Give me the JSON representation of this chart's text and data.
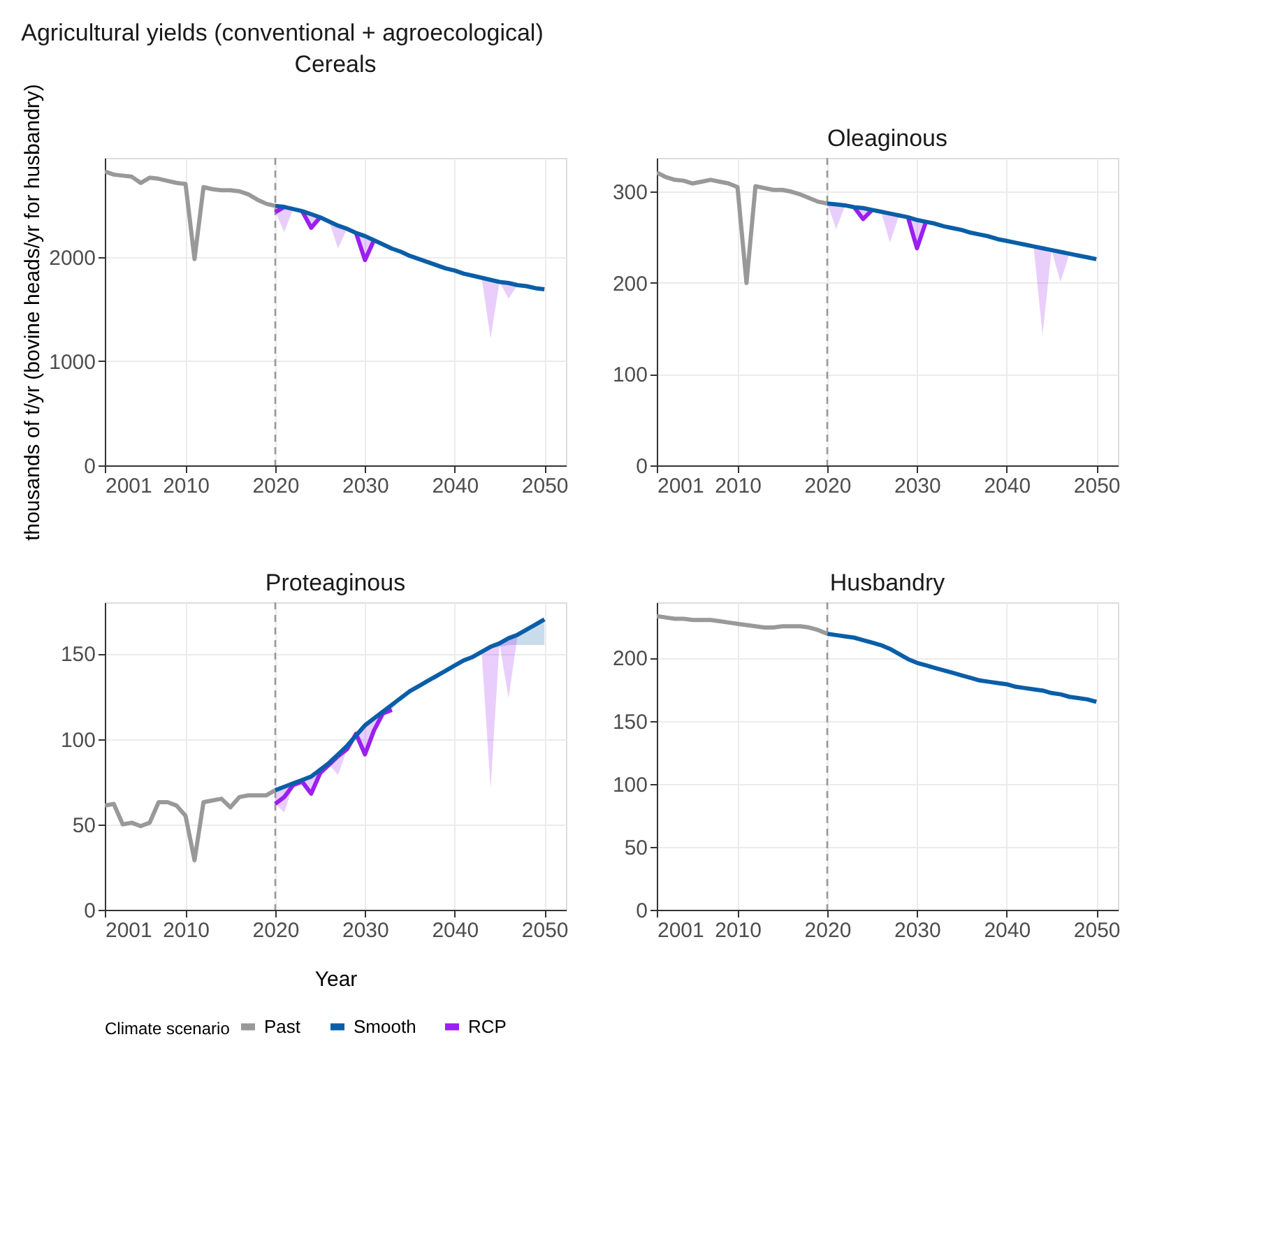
{
  "chart_data": [
    {
      "type": "line",
      "title": "Cereals",
      "annotations": [
        "Agricultural yields (conventional + agroecological)"
      ],
      "ylabel": "thousands of t/yr (bovine heads/yr for husbandry)",
      "legend_title": "Climate scenario",
      "legend": "bottom",
      "grid": true,
      "xlim": [
        2001,
        2052.4
      ],
      "xticks": [
        2001,
        2010,
        2020,
        2030,
        2040,
        2050
      ],
      "ylim": [
        0,
        2950
      ],
      "yticks": [
        0,
        1000,
        2000
      ],
      "ref_lines": [
        {
          "axis": "x",
          "value": 2020,
          "color": "#999999",
          "line_style": "dashed"
        }
      ],
      "series": [
        {
          "name": "Past",
          "color": "#999999",
          "x": [
            2001,
            2002,
            2003,
            2004,
            2005,
            2006,
            2007,
            2008,
            2009,
            2010,
            2011,
            2012,
            2013,
            2014,
            2015,
            2016,
            2017,
            2018,
            2019,
            2020
          ],
          "values": [
            2820,
            2790,
            2780,
            2770,
            2710,
            2760,
            2750,
            2730,
            2710,
            2700,
            1980,
            2670,
            2650,
            2640,
            2640,
            2630,
            2600,
            2550,
            2510,
            2490
          ]
        },
        {
          "name": "Smooth",
          "color": "#0a5ea8",
          "x": [
            2020,
            2021,
            2022,
            2023,
            2024,
            2025,
            2026,
            2027,
            2028,
            2029,
            2030,
            2031,
            2032,
            2033,
            2034,
            2035,
            2036,
            2037,
            2038,
            2039,
            2040,
            2041,
            2042,
            2043,
            2044,
            2045,
            2046,
            2047,
            2048,
            2049,
            2050
          ],
          "values": [
            2490,
            2480,
            2460,
            2440,
            2410,
            2380,
            2340,
            2300,
            2270,
            2230,
            2200,
            2160,
            2120,
            2080,
            2050,
            2010,
            1980,
            1950,
            1920,
            1890,
            1870,
            1840,
            1820,
            1800,
            1780,
            1760,
            1750,
            1730,
            1720,
            1700,
            1690
          ]
        },
        {
          "name": "RCP",
          "color": "#9b1ff0",
          "x": [
            2020,
            2021,
            2022,
            2023,
            2024,
            2025,
            2026,
            2027,
            2028,
            2029,
            2030,
            2031,
            2032,
            2033,
            2034,
            2035,
            2036,
            2037,
            2038,
            2039,
            2040,
            2041,
            2042,
            2043,
            2044,
            2045,
            2046,
            2047,
            2048,
            2049,
            2050
          ],
          "values": [
            2430,
            2480,
            null,
            2440,
            2280,
            2380,
            null,
            null,
            null,
            2230,
            1970,
            2160,
            null,
            null,
            null,
            null,
            null,
            null,
            null,
            null,
            null,
            null,
            null,
            null,
            null,
            null,
            null,
            null,
            null,
            null,
            null
          ],
          "lower": [
            2430,
            2240,
            2460,
            2440,
            2280,
            2380,
            2340,
            2080,
            2270,
            2230,
            1970,
            2160,
            2120,
            2080,
            2050,
            2010,
            1980,
            1950,
            1920,
            1890,
            1870,
            1840,
            1820,
            1800,
            1220,
            1760,
            1600,
            1730,
            1720,
            1700,
            1690
          ],
          "upper": [
            2490,
            2480,
            2460,
            2440,
            2410,
            2380,
            2340,
            2300,
            2270,
            2230,
            2200,
            2160,
            2120,
            2080,
            2050,
            2010,
            1980,
            1950,
            1920,
            1890,
            1870,
            1840,
            1820,
            1800,
            1780,
            1760,
            1750,
            1730,
            1720,
            1700,
            1690
          ]
        }
      ]
    },
    {
      "type": "line",
      "title": "Oleaginous",
      "grid": true,
      "xlim": [
        2001,
        2052.4
      ],
      "xticks": [
        2001,
        2010,
        2020,
        2030,
        2040,
        2050
      ],
      "ylim": [
        0,
        337
      ],
      "yticks": [
        0,
        100,
        200,
        300
      ],
      "ref_lines": [
        {
          "axis": "x",
          "value": 2020,
          "color": "#999999",
          "line_style": "dashed"
        }
      ],
      "series": [
        {
          "name": "Past",
          "color": "#999999",
          "x": [
            2001,
            2002,
            2003,
            2004,
            2005,
            2006,
            2007,
            2008,
            2009,
            2010,
            2011,
            2012,
            2013,
            2014,
            2015,
            2016,
            2017,
            2018,
            2019,
            2020
          ],
          "values": [
            321,
            316,
            313,
            312,
            309,
            311,
            313,
            311,
            309,
            305,
            200,
            306,
            304,
            302,
            302,
            300,
            297,
            293,
            289,
            287
          ]
        },
        {
          "name": "Smooth",
          "color": "#0a5ea8",
          "x": [
            2020,
            2021,
            2022,
            2023,
            2024,
            2025,
            2026,
            2027,
            2028,
            2029,
            2030,
            2031,
            2032,
            2033,
            2034,
            2035,
            2036,
            2037,
            2038,
            2039,
            2040,
            2041,
            2042,
            2043,
            2044,
            2045,
            2046,
            2047,
            2048,
            2049,
            2050
          ],
          "values": [
            287,
            286,
            285,
            283,
            282,
            280,
            278,
            276,
            274,
            272,
            269,
            267,
            265,
            262,
            260,
            258,
            255,
            253,
            251,
            248,
            246,
            244,
            242,
            240,
            238,
            236,
            234,
            232,
            230,
            228,
            226
          ]
        },
        {
          "name": "RCP",
          "color": "#9b1ff0",
          "x": [
            2020,
            2021,
            2022,
            2023,
            2024,
            2025,
            2026,
            2027,
            2028,
            2029,
            2030,
            2031,
            2032,
            2033,
            2034,
            2035,
            2036,
            2037,
            2038,
            2039,
            2040,
            2041,
            2042,
            2043,
            2044,
            2045,
            2046,
            2047,
            2048,
            2049,
            2050
          ],
          "values": [
            null,
            null,
            null,
            283,
            270,
            280,
            null,
            null,
            null,
            272,
            238,
            267,
            null,
            null,
            null,
            null,
            null,
            null,
            null,
            null,
            null,
            null,
            null,
            null,
            null,
            null,
            null,
            null,
            null,
            null,
            null
          ],
          "lower": [
            287,
            259,
            285,
            283,
            270,
            280,
            278,
            244,
            274,
            272,
            238,
            267,
            265,
            262,
            260,
            258,
            255,
            253,
            251,
            248,
            246,
            244,
            242,
            240,
            143,
            236,
            201,
            232,
            230,
            228,
            226
          ],
          "upper": [
            287,
            286,
            285,
            283,
            282,
            280,
            278,
            276,
            274,
            272,
            269,
            267,
            265,
            262,
            260,
            258,
            255,
            253,
            251,
            248,
            246,
            244,
            242,
            240,
            238,
            236,
            234,
            232,
            230,
            228,
            226
          ]
        }
      ]
    },
    {
      "type": "line",
      "title": "Proteaginous",
      "xlabel": "Year",
      "grid": true,
      "xlim": [
        2001,
        2052.4
      ],
      "xticks": [
        2001,
        2010,
        2020,
        2030,
        2040,
        2050
      ],
      "ylim": [
        0,
        180
      ],
      "yticks": [
        0,
        50,
        100,
        150
      ],
      "ref_lines": [
        {
          "axis": "x",
          "value": 2020,
          "color": "#999999",
          "line_style": "dashed"
        }
      ],
      "series": [
        {
          "name": "Past",
          "color": "#999999",
          "x": [
            2001,
            2002,
            2003,
            2004,
            2005,
            2006,
            2007,
            2008,
            2009,
            2010,
            2011,
            2012,
            2013,
            2014,
            2015,
            2016,
            2017,
            2018,
            2019,
            2020
          ],
          "values": [
            61,
            62,
            50,
            51,
            49,
            51,
            63,
            63,
            61,
            55,
            29,
            63,
            64,
            65,
            60,
            66,
            67,
            67,
            67,
            70
          ]
        },
        {
          "name": "Smooth",
          "color": "#0a5ea8",
          "x": [
            2020,
            2021,
            2022,
            2023,
            2024,
            2025,
            2026,
            2027,
            2028,
            2029,
            2030,
            2031,
            2032,
            2033,
            2034,
            2035,
            2036,
            2037,
            2038,
            2039,
            2040,
            2041,
            2042,
            2043,
            2044,
            2045,
            2046,
            2047,
            2048,
            2049,
            2050
          ],
          "values": [
            70,
            72,
            74,
            76,
            78,
            82,
            86,
            91,
            96,
            102,
            108,
            112,
            116,
            120,
            124,
            128,
            131,
            134,
            137,
            140,
            143,
            146,
            148,
            151,
            154,
            156,
            159,
            161,
            164,
            167,
            170
          ],
          "lower": [
            70,
            72,
            74,
            76,
            78,
            82,
            86,
            91,
            96,
            102,
            108,
            112,
            116,
            120,
            124,
            128,
            131,
            134,
            137,
            140,
            143,
            146,
            148,
            151,
            153,
            154,
            155,
            155,
            155,
            155,
            155
          ],
          "upper": [
            70,
            72,
            74,
            76,
            78,
            82,
            86,
            91,
            96,
            102,
            108,
            112,
            116,
            120,
            124,
            128,
            131,
            134,
            137,
            140,
            143,
            146,
            148,
            151,
            154,
            156,
            159,
            161,
            164,
            167,
            170
          ]
        },
        {
          "name": "RCP",
          "color": "#9b1ff0",
          "x": [
            2020,
            2021,
            2022,
            2023,
            2024,
            2025,
            2026,
            2027,
            2028,
            2029,
            2030,
            2031,
            2032,
            2033,
            2034,
            2035,
            2036,
            2037,
            2038,
            2039,
            2040,
            2041,
            2042,
            2043,
            2044,
            2045,
            2046,
            2047,
            2048,
            2049,
            2050
          ],
          "values": [
            62,
            66,
            73,
            75,
            68,
            80,
            85,
            90,
            94,
            103,
            91,
            105,
            115,
            117,
            null,
            null,
            null,
            null,
            null,
            null,
            null,
            null,
            null,
            null,
            null,
            null,
            null,
            null,
            null,
            null,
            null
          ],
          "lower": [
            62,
            57,
            73,
            75,
            68,
            80,
            85,
            79,
            94,
            103,
            91,
            105,
            115,
            117,
            124,
            128,
            131,
            134,
            135,
            140,
            143,
            146,
            148,
            151,
            71,
            156,
            124,
            160,
            164,
            167,
            170
          ],
          "upper": [
            70,
            72,
            74,
            76,
            78,
            82,
            86,
            91,
            96,
            102,
            108,
            112,
            116,
            120,
            124,
            128,
            131,
            134,
            137,
            140,
            143,
            146,
            148,
            151,
            154,
            156,
            159,
            161,
            164,
            167,
            170
          ]
        }
      ]
    },
    {
      "type": "line",
      "title": "Husbandry",
      "grid": true,
      "xlim": [
        2001,
        2052.4
      ],
      "xticks": [
        2001,
        2010,
        2020,
        2030,
        2040,
        2050
      ],
      "ylim": [
        0,
        244
      ],
      "yticks": [
        0,
        50,
        100,
        150,
        200
      ],
      "ref_lines": [
        {
          "axis": "x",
          "value": 2020,
          "color": "#999999",
          "line_style": "dashed"
        }
      ],
      "series": [
        {
          "name": "Past",
          "color": "#999999",
          "x": [
            2001,
            2002,
            2003,
            2004,
            2005,
            2006,
            2007,
            2008,
            2009,
            2010,
            2011,
            2012,
            2013,
            2014,
            2015,
            2016,
            2017,
            2018,
            2019,
            2020
          ],
          "values": [
            233,
            232,
            231,
            231,
            230,
            230,
            230,
            229,
            228,
            227,
            226,
            225,
            224,
            224,
            225,
            225,
            225,
            224,
            222,
            219
          ]
        },
        {
          "name": "Smooth",
          "color": "#0a5ea8",
          "x": [
            2020,
            2021,
            2022,
            2023,
            2024,
            2025,
            2026,
            2027,
            2028,
            2029,
            2030,
            2031,
            2032,
            2033,
            2034,
            2035,
            2036,
            2037,
            2038,
            2039,
            2040,
            2041,
            2042,
            2043,
            2044,
            2045,
            2046,
            2047,
            2048,
            2049,
            2050
          ],
          "values": [
            219,
            218,
            217,
            216,
            214,
            212,
            210,
            207,
            203,
            199,
            196,
            194,
            192,
            190,
            188,
            186,
            184,
            182,
            181,
            180,
            179,
            177,
            176,
            175,
            174,
            172,
            171,
            169,
            168,
            167,
            165
          ]
        }
      ]
    }
  ]
}
